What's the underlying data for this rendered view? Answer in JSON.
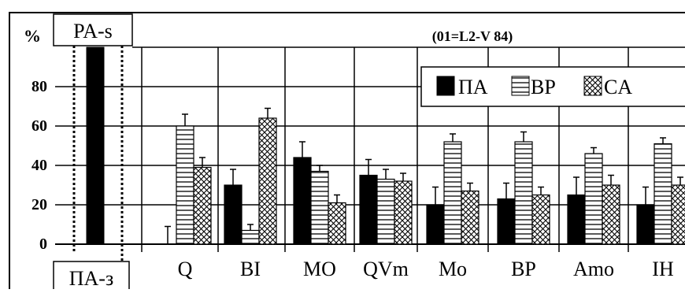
{
  "chart_data": {
    "type": "bar",
    "title": "(01=L2-V 84)",
    "ylabel": "%",
    "ylim": [
      0,
      100
    ],
    "yticks": [
      0,
      20,
      40,
      60,
      80
    ],
    "grid": "horizontal and vertical",
    "legend_placement": "top-right",
    "top_left_label": "PA-s",
    "bottom_left_label": "ПА-з",
    "categories": [
      "Q",
      "BI",
      "MO",
      "QVm",
      "Mo",
      "BP",
      "Amo",
      "IH"
    ],
    "series": [
      {
        "name": "ПА",
        "pattern": "solid",
        "values": [
          0,
          30,
          44,
          35,
          20,
          23,
          25,
          20
        ],
        "errors": [
          9,
          8,
          8,
          8,
          9,
          8,
          9,
          9
        ]
      },
      {
        "name": "BP",
        "pattern": "horizontal",
        "values": [
          60,
          7,
          37,
          33,
          52,
          52,
          46,
          51
        ],
        "errors": [
          6,
          3,
          3,
          5,
          4,
          5,
          3,
          3
        ]
      },
      {
        "name": "CA",
        "pattern": "crosshatch",
        "values": [
          39,
          64,
          21,
          32,
          27,
          25,
          30,
          30
        ],
        "errors": [
          5,
          5,
          4,
          4,
          4,
          4,
          5,
          4
        ]
      }
    ],
    "reference_bar": {
      "value": 100,
      "pattern": "solid"
    },
    "colors": {
      "fill": "#000000",
      "background": "#ffffff",
      "grid": "#000000"
    }
  }
}
